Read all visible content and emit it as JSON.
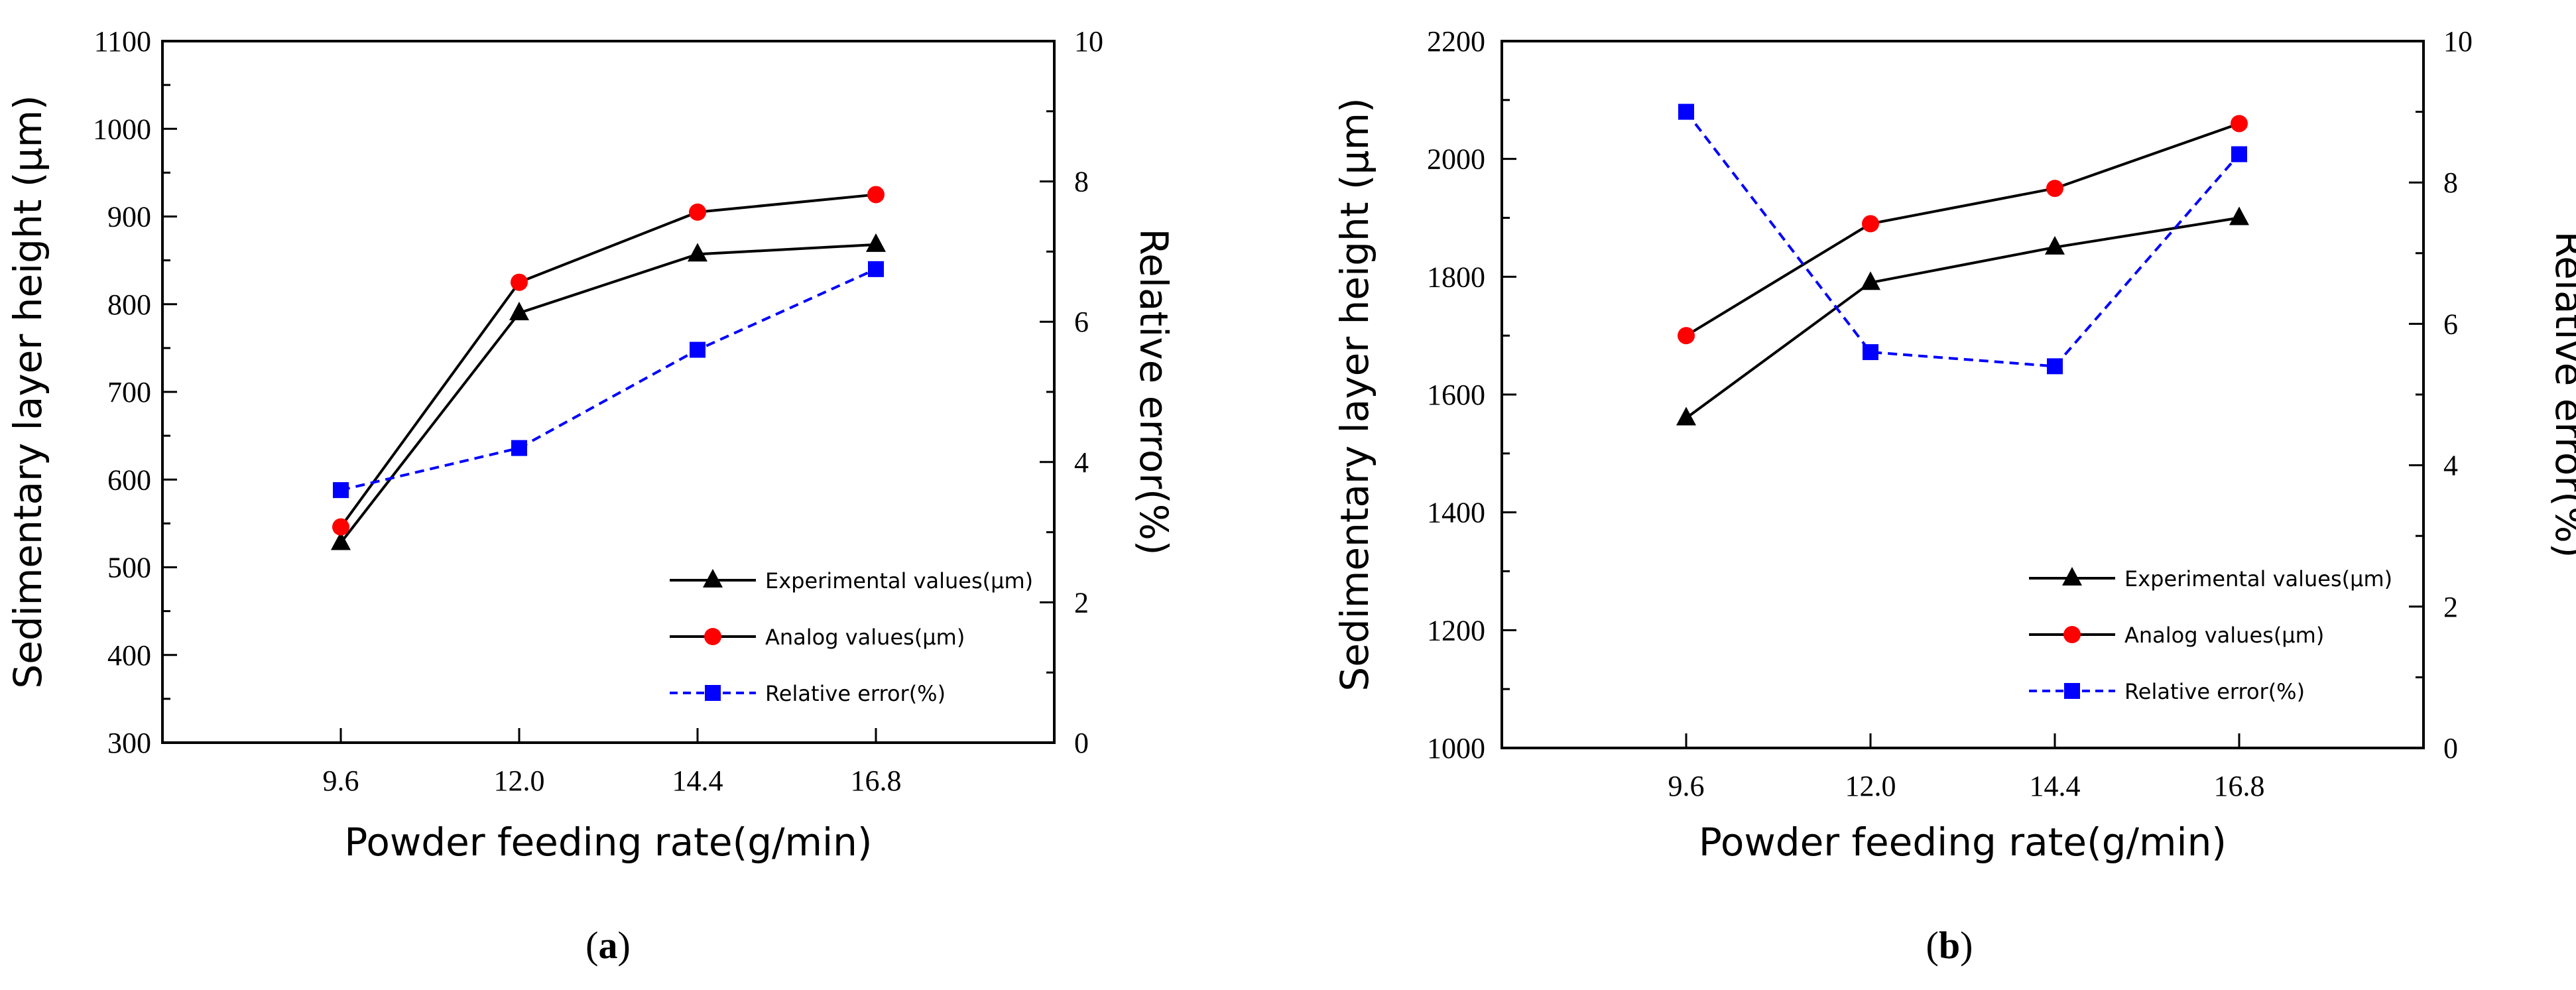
{
  "chart_data": [
    {
      "panel": "(a)",
      "panel_letter": "a",
      "type": "line",
      "categories": [
        "9.6",
        "12.0",
        "14.4",
        "16.8"
      ],
      "xlabel": "Powder feeding rate(g/min)",
      "ylabel": "Sedimentary layer height (μm)",
      "y2label": "Relative error(%)",
      "ylim": [
        300,
        1100
      ],
      "yticks": [
        300,
        400,
        500,
        600,
        700,
        800,
        900,
        1000,
        1100
      ],
      "y2lim": [
        0,
        10
      ],
      "y2ticks": [
        0,
        2,
        4,
        6,
        8,
        10
      ],
      "grid": false,
      "legend_position": "bottom-right",
      "series": [
        {
          "name": "Experimental values(μm)",
          "axis": "left",
          "marker": "triangle",
          "color": "#000000",
          "line_style": "solid",
          "values": [
            528,
            790,
            857,
            868
          ]
        },
        {
          "name": "Analog values(μm)",
          "axis": "left",
          "marker": "circle",
          "color": "#000000",
          "marker_color": "#ff0000",
          "line_style": "solid",
          "values": [
            546,
            825,
            905,
            925
          ]
        },
        {
          "name": "Relative error(%)",
          "axis": "right",
          "marker": "square",
          "color": "#0000ff",
          "line_style": "dashed",
          "values": [
            3.6,
            4.2,
            5.6,
            6.75
          ]
        }
      ]
    },
    {
      "panel": "(b)",
      "panel_letter": "b",
      "type": "line",
      "categories": [
        "9.6",
        "12.0",
        "14.4",
        "16.8"
      ],
      "xlabel": "Powder feeding rate(g/min)",
      "ylabel": "Sedimentary layer height (μm)",
      "y2label": "Relative error(%)",
      "ylim": [
        1000,
        2200
      ],
      "yticks": [
        1000,
        1200,
        1400,
        1600,
        1800,
        2000,
        2200
      ],
      "y2lim": [
        0,
        10
      ],
      "y2ticks": [
        0,
        2,
        4,
        6,
        8,
        10
      ],
      "grid": false,
      "legend_position": "bottom-right",
      "series": [
        {
          "name": "Experimental values(μm)",
          "axis": "left",
          "marker": "triangle",
          "color": "#000000",
          "line_style": "solid",
          "values": [
            1560,
            1790,
            1850,
            1900
          ]
        },
        {
          "name": "Analog values(μm)",
          "axis": "left",
          "marker": "circle",
          "color": "#000000",
          "marker_color": "#ff0000",
          "line_style": "solid",
          "values": [
            1700,
            1890,
            1950,
            2060
          ]
        },
        {
          "name": "Relative error(%)",
          "axis": "right",
          "marker": "square",
          "color": "#0000ff",
          "line_style": "dashed",
          "values": [
            9.0,
            5.6,
            5.4,
            8.4
          ]
        }
      ]
    }
  ]
}
